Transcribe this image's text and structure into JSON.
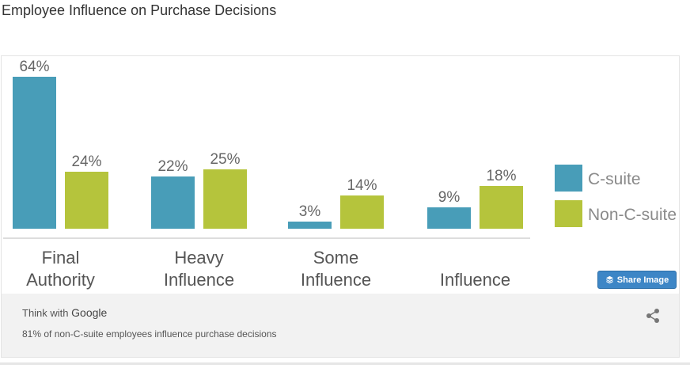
{
  "page": {
    "title": "Employee Influence on Purchase Decisions"
  },
  "chart_data": {
    "type": "bar",
    "categories": [
      [
        "Final",
        "Authority"
      ],
      [
        "Heavy",
        "Influence"
      ],
      [
        "Some",
        "Influence"
      ],
      [
        "",
        "Influence"
      ]
    ],
    "series": [
      {
        "name": "C-suite",
        "values": [
          64,
          22,
          3,
          9
        ],
        "labels": [
          "64%",
          "22%",
          "3%",
          "9%"
        ],
        "color": "#489db8"
      },
      {
        "name": "Non-C-suite",
        "values": [
          24,
          25,
          14,
          18
        ],
        "labels": [
          "24%",
          "25%",
          "14%",
          "18%"
        ],
        "color": "#b5c43c"
      }
    ],
    "ylim": [
      0,
      70
    ],
    "legend": "right",
    "grid": false
  },
  "footer": {
    "brand_prefix": "Think with",
    "brand_name": "Google",
    "caption": "81% of non-C-suite employees influence purchase decisions"
  },
  "share_button": {
    "label": "Share Image",
    "icon": "layers-icon"
  },
  "share_icon": "share-icon"
}
